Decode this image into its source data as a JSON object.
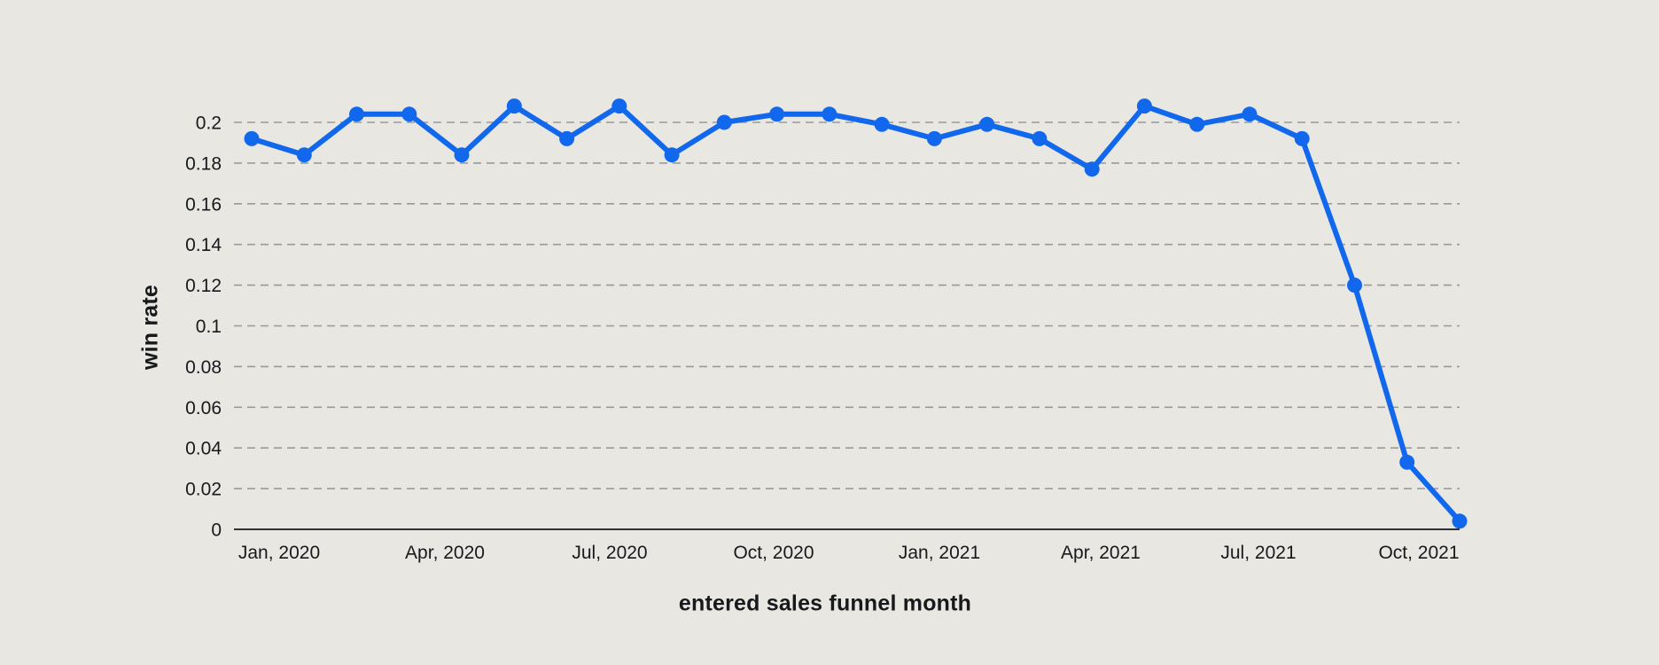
{
  "chart_data": {
    "type": "line",
    "xlabel": "entered sales funnel month",
    "ylabel": "win rate",
    "x": [
      "Jan, 2020",
      "Feb, 2020",
      "Mar, 2020",
      "Apr, 2020",
      "May, 2020",
      "Jun, 2020",
      "Jul, 2020",
      "Aug, 2020",
      "Sep, 2020",
      "Oct, 2020",
      "Nov, 2020",
      "Dec, 2020",
      "Jan, 2021",
      "Feb, 2021",
      "Mar, 2021",
      "Apr, 2021",
      "May, 2021",
      "Jun, 2021",
      "Jul, 2021",
      "Aug, 2021",
      "Sep, 2021",
      "Oct, 2021",
      "Nov, 2021",
      "Dec, 2021"
    ],
    "series": [
      {
        "name": "win rate",
        "color": "#1268ec",
        "values": [
          0.192,
          0.184,
          0.204,
          0.204,
          0.184,
          0.208,
          0.192,
          0.208,
          0.184,
          0.2,
          0.204,
          0.204,
          0.199,
          0.192,
          0.199,
          0.192,
          0.177,
          0.208,
          0.199,
          0.204,
          0.192,
          0.12,
          0.033,
          0.004
        ]
      }
    ],
    "x_tick_indices": [
      0,
      3,
      6,
      9,
      12,
      15,
      18,
      21
    ],
    "x_tick_labels": [
      "Jan, 2020",
      "Apr, 2020",
      "Jul, 2020",
      "Oct, 2020",
      "Jan, 2021",
      "Apr, 2021",
      "Jul, 2021",
      "Oct, 2021"
    ],
    "y_tick_values": [
      0,
      0.02,
      0.04,
      0.06,
      0.08,
      0.1,
      0.12,
      0.14,
      0.16,
      0.18,
      0.2
    ],
    "y_tick_labels": [
      "0",
      "0.02",
      "0.04",
      "0.06",
      "0.08",
      "0.1",
      "0.12",
      "0.14",
      "0.16",
      "0.18",
      "0.2"
    ],
    "ylim": [
      0,
      0.22
    ],
    "grid": "horizontal-dashed",
    "legend": "none",
    "marker": "circle",
    "colors": {
      "background": "#e9e7e2",
      "line": "#1268ec",
      "grid": "#8f9296",
      "axis": "#2e3135",
      "text": "#17191c"
    }
  }
}
